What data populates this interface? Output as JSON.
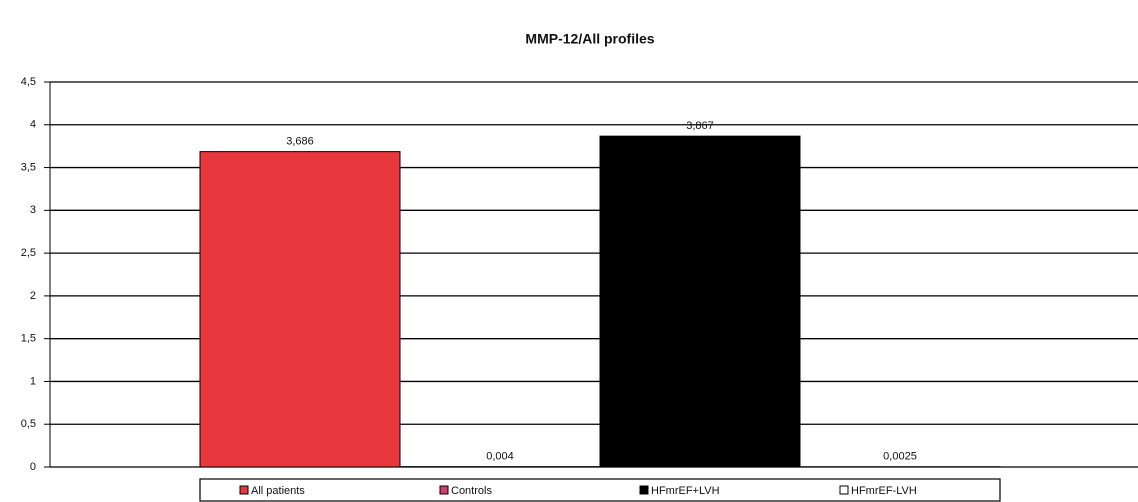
{
  "chart_data": {
    "type": "bar",
    "title": "MMP-12/All profiles",
    "series": [
      {
        "name": "All patients",
        "color": "#e8383d",
        "values": [
          3.686
        ],
        "value_labels": [
          "3,686"
        ]
      },
      {
        "name": "Controls",
        "color": "#d0406a",
        "values": [
          0.004
        ],
        "value_labels": [
          "0,004"
        ]
      },
      {
        "name": "HFmrEF+LVH",
        "color": "#000000",
        "values": [
          3.867
        ],
        "value_labels": [
          "3,867"
        ]
      },
      {
        "name": "HFmrEF-LVH",
        "color": "#ffffff",
        "values": [
          0.0025
        ],
        "value_labels": [
          "0,0025"
        ]
      }
    ],
    "ylim": [
      0,
      4.5
    ],
    "yticks": [
      0,
      {
        "value": 0.5,
        "label": "0,5"
      },
      1,
      {
        "value": 1.5,
        "label": "1,5"
      },
      2,
      {
        "value": 2.5,
        "label": "2,5"
      },
      3,
      {
        "value": 3.5,
        "label": "3,5"
      },
      4,
      {
        "value": 4.5,
        "label": "4,5"
      }
    ],
    "grid": true,
    "legend": "bottom"
  }
}
